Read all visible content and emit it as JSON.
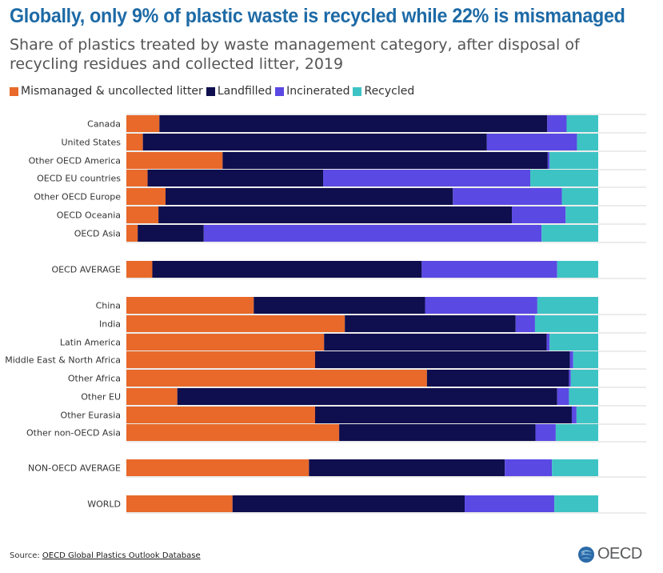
{
  "title": "Globally, only 9% of plastic waste is recycled while 22% is mismanaged",
  "subtitle": "Share of plastics treated by waste management category, after disposal of recycling residues and collected litter, 2019",
  "source": {
    "label": "Source: ",
    "link_text": "OECD Global Plastics Outlook Database"
  },
  "logo": {
    "text": "OECD"
  },
  "colors": {
    "mismanaged": "#e8692a",
    "landfilled": "#0f0e4e",
    "incinerated": "#5a49e3",
    "recycled": "#3ec3c4"
  },
  "chart_data": {
    "type": "bar",
    "orientation": "horizontal",
    "stacked": true,
    "xlim": [
      0,
      100
    ],
    "legend_position": "top",
    "grid": false,
    "categories": [
      "Canada",
      "United States",
      "Other OECD America",
      "OECD EU countries",
      "Other OECD Europe",
      "OECD Oceania",
      "OECD Asia",
      "OECD AVERAGE",
      "China",
      "India",
      "Latin America",
      "Middle East & North Africa",
      "Other Africa",
      "Other EU",
      "Other Eurasia",
      "Other non-OECD Asia",
      "NON-OECD AVERAGE",
      "WORLD"
    ],
    "series": [
      {
        "name": "Mismanaged & uncollected litter",
        "color": "#e8692a",
        "values": [
          7,
          3.5,
          20.4,
          4.5,
          8.3,
          6.8,
          2.4,
          5.5,
          27,
          46.3,
          41.9,
          40,
          63.7,
          10.8,
          40,
          45.1,
          38.7,
          22.5
        ]
      },
      {
        "name": "Landfilled",
        "color": "#0f0e4e",
        "values": [
          82.2,
          72.9,
          68.9,
          37.2,
          60.9,
          74.9,
          14,
          57.1,
          36.3,
          36.2,
          47.2,
          54,
          30.1,
          80.5,
          54.4,
          41.6,
          41.5,
          49.2
        ]
      },
      {
        "name": "Incinerated",
        "color": "#5a49e3",
        "values": [
          4.1,
          19.1,
          0.4,
          43.9,
          23.1,
          11.4,
          71.6,
          28.7,
          23.8,
          4.1,
          0.6,
          0.7,
          0.4,
          2.5,
          1,
          4.3,
          10,
          19
        ]
      },
      {
        "name": "Recycled",
        "color": "#3ec3c4",
        "values": [
          6.7,
          4.5,
          10.3,
          14.4,
          7.7,
          6.9,
          12,
          8.7,
          12.9,
          13.4,
          10.3,
          5.3,
          5.8,
          6.2,
          4.6,
          9,
          9.8,
          9.3
        ]
      }
    ]
  }
}
